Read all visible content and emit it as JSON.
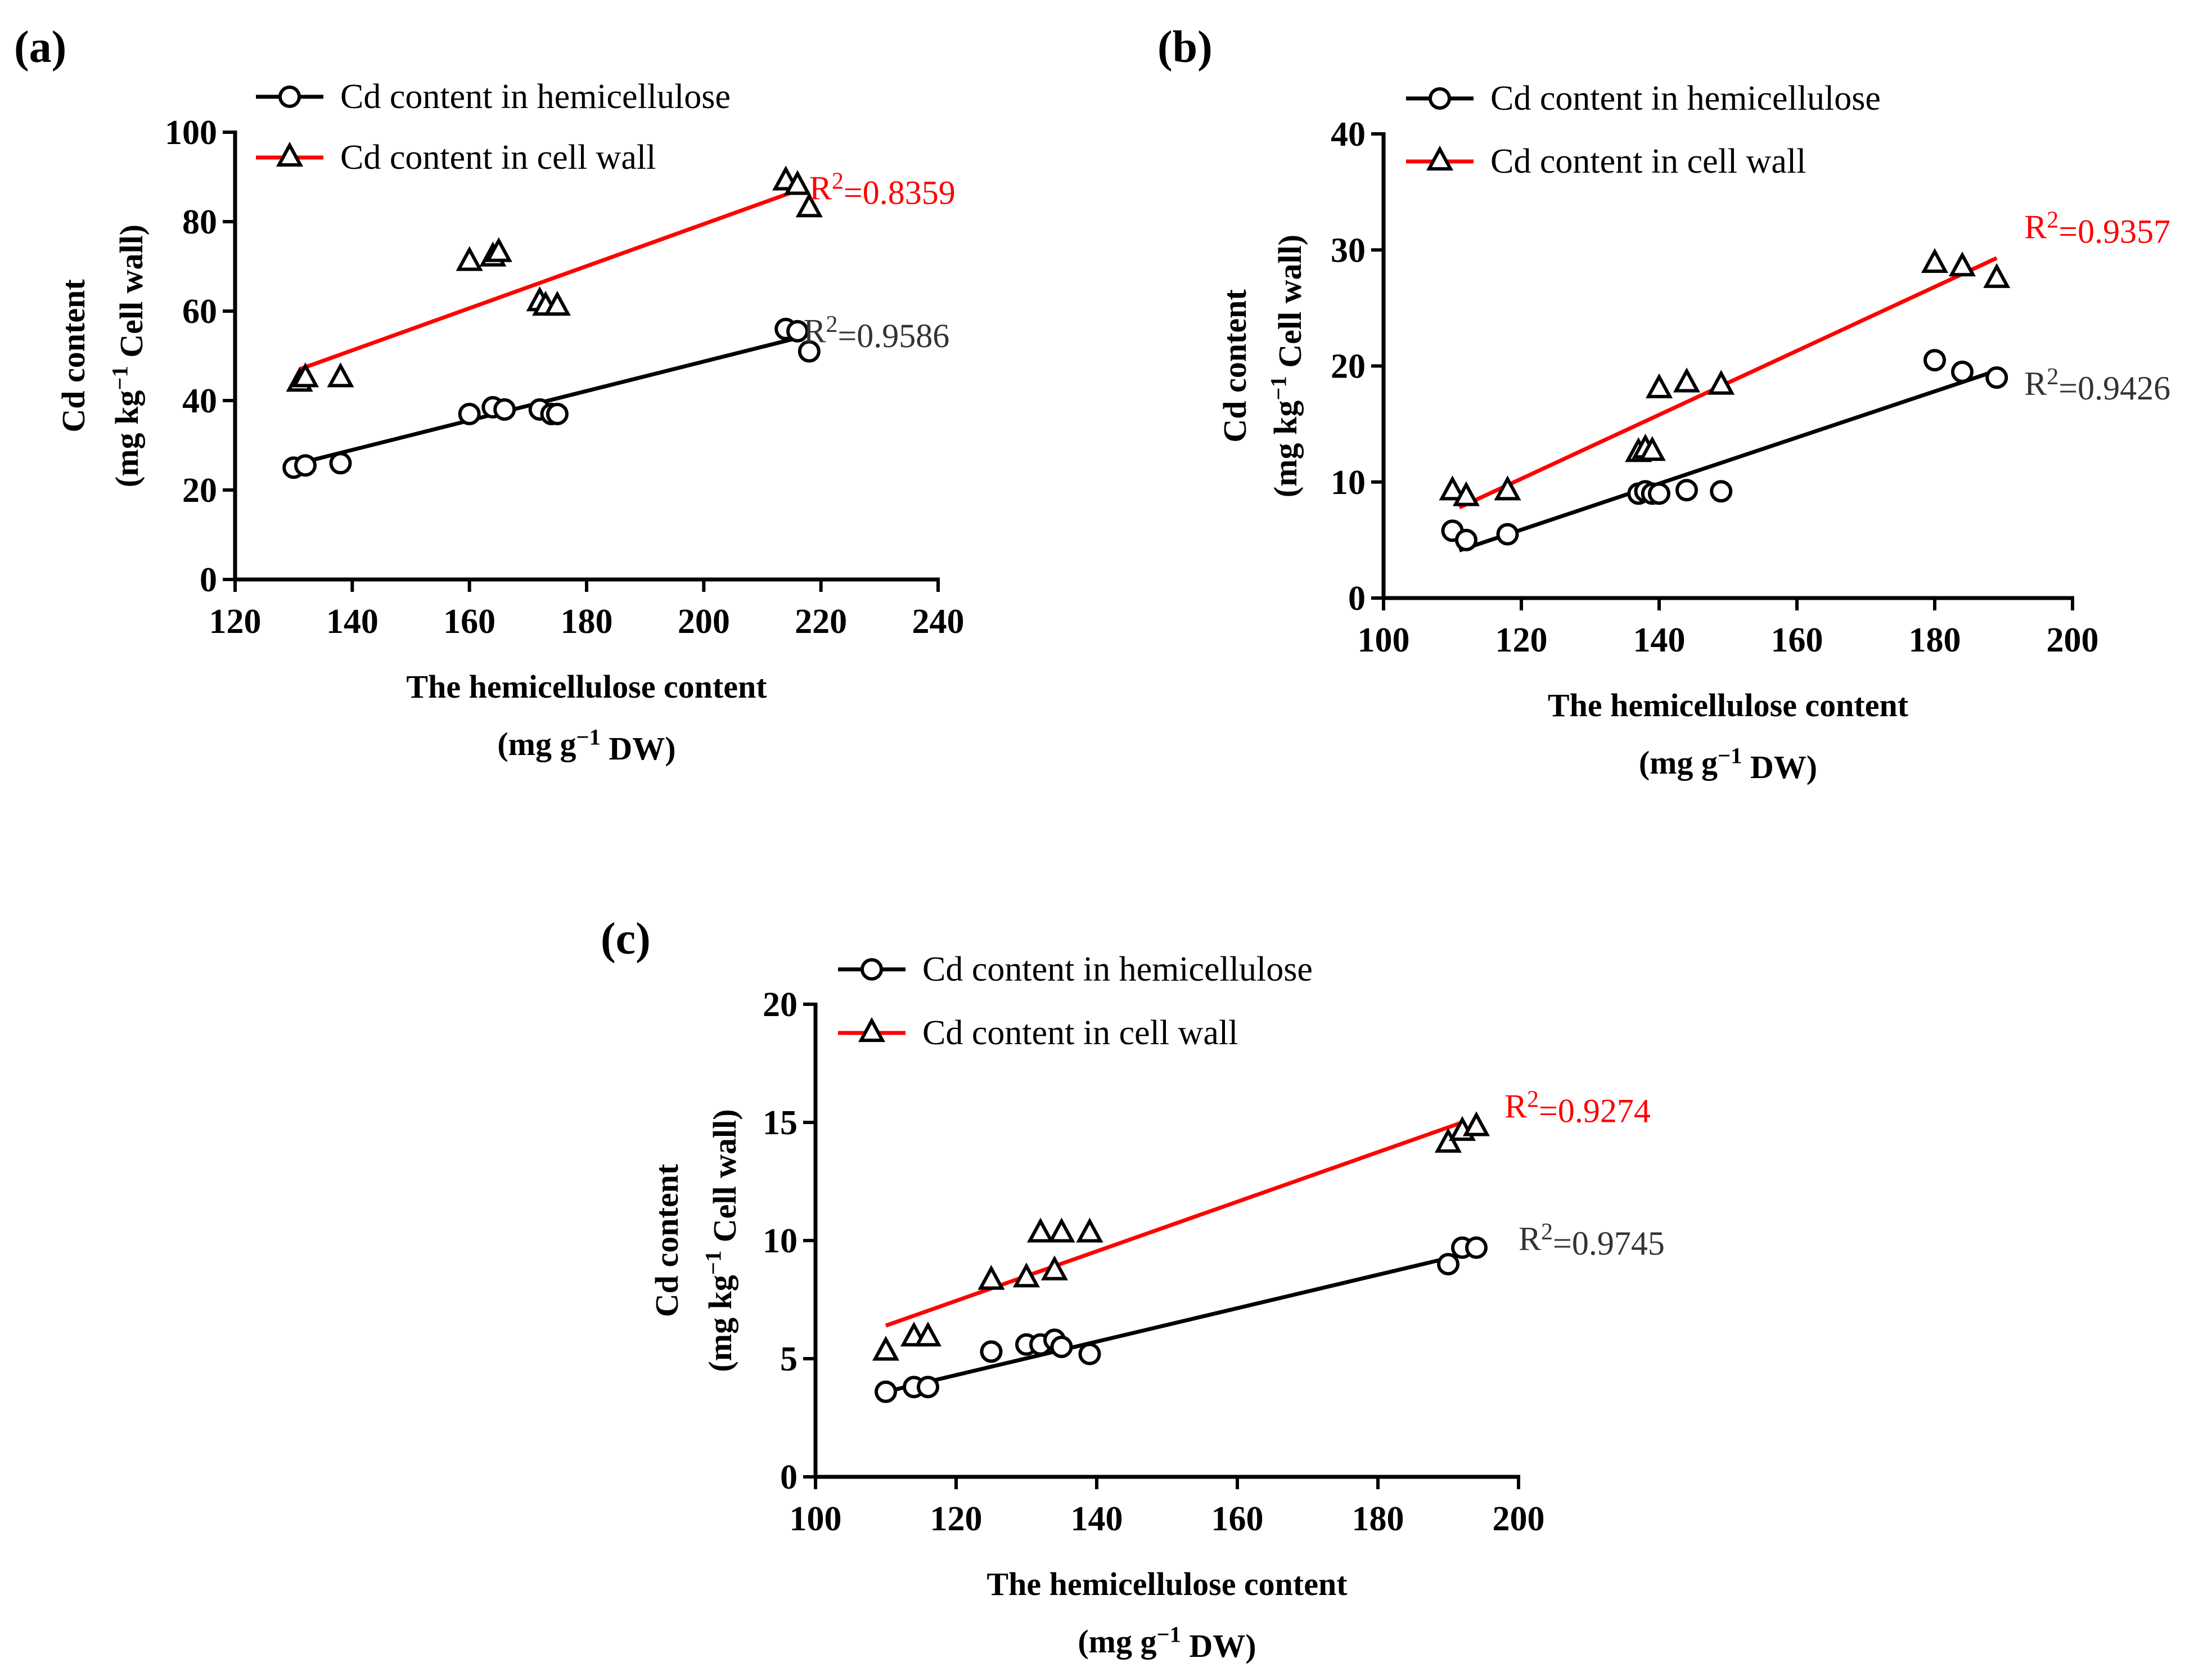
{
  "chart_data": [
    {
      "type": "scatter",
      "panel": "(a)",
      "xlabel": "The hemicellulose content",
      "xlabel_unit": "(mg g",
      "xlabel_unit_sup": "−1",
      "xlabel_unit_tail": " DW)",
      "ylabel": "Cd content",
      "ylabel_unit": "(mg kg",
      "ylabel_unit_sup": "−1",
      "ylabel_unit_tail": " Cell wall)",
      "xlim": [
        120,
        240
      ],
      "ylim": [
        0,
        100
      ],
      "xticks": [
        120,
        140,
        160,
        180,
        200,
        220,
        240
      ],
      "yticks": [
        0,
        20,
        40,
        60,
        80,
        100
      ],
      "legend_position": "top-left",
      "series": [
        {
          "name": "Cd content in hemicellulose",
          "marker": "circle",
          "line_color": "#000000",
          "label_color": "#333333",
          "r2_prefix": "R",
          "r2_sup": "2",
          "r2_value": "=0.9586",
          "r2_anchor": [
            217,
            53
          ],
          "x": [
            130,
            132,
            138,
            160,
            164,
            166,
            172,
            174,
            175,
            214,
            216,
            218
          ],
          "y": [
            25,
            25.5,
            26,
            37,
            38.5,
            38,
            38,
            37,
            37,
            56,
            55.5,
            51
          ],
          "fit_x": [
            131,
            216
          ],
          "fit_y": [
            26,
            54
          ]
        },
        {
          "name": "Cd content in cell wall",
          "marker": "triangle",
          "line_color": "#ff0000",
          "label_color": "#ff0000",
          "r2_prefix": "R",
          "r2_sup": "2",
          "r2_value": "=0.8359",
          "r2_anchor": [
            218,
            85
          ],
          "x": [
            131,
            132,
            138,
            160,
            164,
            165,
            172,
            173,
            175,
            214,
            216,
            218
          ],
          "y": [
            44,
            45,
            45,
            71,
            72,
            73,
            62,
            61,
            61,
            89,
            88,
            83
          ],
          "fit_x": [
            131,
            216
          ],
          "fit_y": [
            47,
            87
          ]
        }
      ]
    },
    {
      "type": "scatter",
      "panel": "(b)",
      "xlabel": "The hemicellulose content",
      "xlabel_unit": "(mg g",
      "xlabel_unit_sup": "−1",
      "xlabel_unit_tail": " DW)",
      "ylabel": "Cd content",
      "ylabel_unit": "(mg kg",
      "ylabel_unit_sup": "−1",
      "ylabel_unit_tail": " Cell wall)",
      "xlim": [
        100,
        200
      ],
      "ylim": [
        0,
        40
      ],
      "xticks": [
        100,
        120,
        140,
        160,
        180,
        200
      ],
      "yticks": [
        0,
        10,
        20,
        30,
        40
      ],
      "legend_position": "top-left",
      "series": [
        {
          "name": "Cd content in hemicellulose",
          "marker": "circle",
          "line_color": "#000000",
          "label_color": "#333333",
          "r2_prefix": "R",
          "r2_sup": "2",
          "r2_value": "=0.9426",
          "r2_anchor": [
            193,
            17.5
          ],
          "x": [
            110,
            112,
            118,
            137,
            138,
            139,
            140,
            144,
            149,
            180,
            184,
            189
          ],
          "y": [
            5.8,
            5,
            5.5,
            9,
            9.2,
            9,
            9,
            9.3,
            9.2,
            20.5,
            19.5,
            19
          ],
          "fit_x": [
            111,
            189
          ],
          "fit_y": [
            4.1,
            19.6
          ]
        },
        {
          "name": "Cd content in cell wall",
          "marker": "triangle",
          "line_color": "#ff0000",
          "label_color": "#ff0000",
          "r2_prefix": "R",
          "r2_sup": "2",
          "r2_value": "=0.9357",
          "r2_anchor": [
            193,
            31
          ],
          "x": [
            110,
            112,
            118,
            137,
            138,
            139,
            140,
            144,
            149,
            180,
            184,
            189
          ],
          "y": [
            9.2,
            8.7,
            9.2,
            12.5,
            12.8,
            12.6,
            18,
            18.5,
            18.3,
            28.8,
            28.5,
            27.5
          ],
          "fit_x": [
            111,
            189
          ],
          "fit_y": [
            7.8,
            29.3
          ]
        }
      ]
    },
    {
      "type": "scatter",
      "panel": "(c)",
      "xlabel": "The hemicellulose content",
      "xlabel_unit": "(mg g",
      "xlabel_unit_sup": "−1",
      "xlabel_unit_tail": " DW)",
      "ylabel": "Cd content",
      "ylabel_unit": "(mg kg",
      "ylabel_unit_sup": "−1",
      "ylabel_unit_tail": " Cell wall)",
      "xlim": [
        100,
        200
      ],
      "ylim": [
        0,
        20
      ],
      "xticks": [
        100,
        120,
        140,
        160,
        180,
        200
      ],
      "yticks": [
        0,
        5,
        10,
        15,
        20
      ],
      "legend_position": "top-left",
      "series": [
        {
          "name": "Cd content in hemicellulose",
          "marker": "circle",
          "line_color": "#000000",
          "label_color": "#333333",
          "r2_prefix": "R",
          "r2_sup": "2",
          "r2_value": "=0.9745",
          "r2_anchor": [
            200,
            9.6
          ],
          "x": [
            110,
            114,
            116,
            125,
            130,
            132,
            134,
            135,
            139,
            190,
            192,
            194
          ],
          "y": [
            3.6,
            3.8,
            3.8,
            5.3,
            5.6,
            5.6,
            5.8,
            5.5,
            5.2,
            9,
            9.7,
            9.7
          ],
          "fit_x": [
            110,
            192
          ],
          "fit_y": [
            3.6,
            9.4
          ]
        },
        {
          "name": "Cd content in cell wall",
          "marker": "triangle",
          "line_color": "#ff0000",
          "label_color": "#ff0000",
          "r2_prefix": "R",
          "r2_sup": "2",
          "r2_value": "=0.9274",
          "r2_anchor": [
            198,
            15.2
          ],
          "x": [
            110,
            114,
            116,
            125,
            130,
            132,
            135,
            139,
            134,
            190,
            192,
            194
          ],
          "y": [
            5.3,
            5.9,
            5.9,
            8.3,
            8.4,
            10.3,
            10.3,
            10.3,
            8.7,
            14.1,
            14.6,
            14.8
          ],
          "fit_x": [
            110,
            192
          ],
          "fit_y": [
            6.4,
            15
          ]
        }
      ]
    }
  ]
}
